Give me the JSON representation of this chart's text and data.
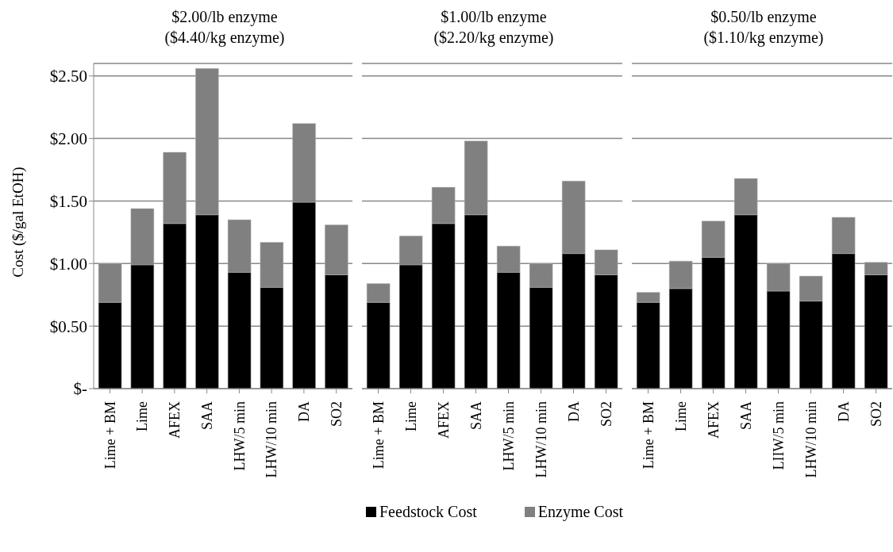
{
  "chart_data": [
    {
      "type": "bar",
      "title": "$2.00/lb enzyme\n($4.40/kg enzyme)",
      "ylabel": "Cost ($/gal EtOH)",
      "stacked": true,
      "grid": "y",
      "legend": "bottom",
      "categories": [
        "Lime + BM",
        "Lime",
        "AFEX",
        "SAA",
        "LHW/5 min",
        "LHW/10 min",
        "DA",
        "SO2"
      ],
      "series": [
        {
          "name": "Feedstock Cost",
          "color": "#000000",
          "values": [
            0.69,
            0.99,
            1.32,
            1.39,
            0.93,
            0.81,
            1.49,
            0.91
          ]
        },
        {
          "name": "Enzyme Cost",
          "color": "#808080",
          "values": [
            0.31,
            0.45,
            0.57,
            1.17,
            0.42,
            0.36,
            0.63,
            0.4
          ]
        }
      ],
      "ylim": [
        0,
        2.6
      ],
      "yticks": [
        {
          "value": 0,
          "label": "$-"
        },
        {
          "value": 0.5,
          "label": "$0.50"
        },
        {
          "value": 1,
          "label": "$1.00"
        },
        {
          "value": 1.5,
          "label": "$1.50"
        },
        {
          "value": 2,
          "label": "$2.00"
        },
        {
          "value": 2.5,
          "label": "$2.50"
        }
      ]
    },
    {
      "type": "bar",
      "title": "$1.00/lb enzyme\n($2.20/kg enzyme)",
      "stacked": true,
      "grid": "y",
      "tick_labels": "x",
      "categories": [
        "Lime + BM",
        "Lime",
        "AFEX",
        "SAA",
        "LHW/5 min",
        "LHW/10 min",
        "DA",
        "SO2"
      ],
      "series": [
        {
          "color": "#000000",
          "values": [
            0.69,
            0.99,
            1.32,
            1.39,
            0.93,
            0.81,
            1.08,
            0.91
          ]
        },
        {
          "color": "#808080",
          "values": [
            0.15,
            0.23,
            0.29,
            0.59,
            0.21,
            0.19,
            0.58,
            0.2
          ]
        }
      ],
      "ylim": [
        0,
        2.6
      ],
      "yticks": [
        0,
        0.5,
        1,
        1.5,
        2,
        2.5
      ]
    },
    {
      "type": "bar",
      "title": "$0.50/lb enzyme\n($1.10/kg enzyme)",
      "stacked": true,
      "grid": "y",
      "tick_labels": "x",
      "categories": [
        "Lime + BM",
        "Lime",
        "AFEX",
        "SAA",
        "LIIW/5 min",
        "LHW/10 min",
        "DA",
        "SO2"
      ],
      "series": [
        {
          "color": "#000000",
          "values": [
            0.69,
            0.8,
            1.05,
            1.39,
            0.78,
            0.7,
            1.08,
            0.91
          ]
        },
        {
          "color": "#808080",
          "values": [
            0.08,
            0.22,
            0.29,
            0.29,
            0.22,
            0.2,
            0.29,
            0.1
          ]
        }
      ],
      "ylim": [
        0,
        2.6
      ],
      "yticks": [
        0,
        0.5,
        1,
        1.5,
        2,
        2.5
      ]
    }
  ]
}
